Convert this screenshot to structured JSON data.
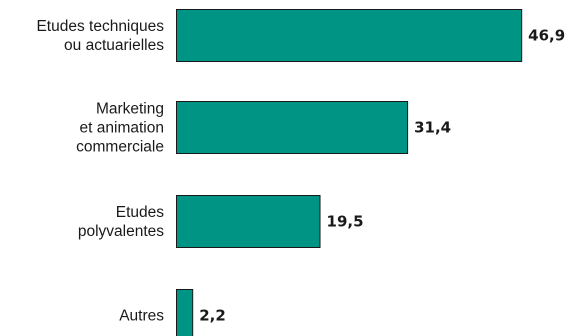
{
  "chart_data": {
    "type": "bar",
    "orientation": "horizontal",
    "categories": [
      [
        "Etudes techniques",
        "ou actuarielles"
      ],
      [
        "Marketing",
        "et animation",
        "commerciale"
      ],
      [
        "Etudes",
        "polyvalentes"
      ],
      [
        "Autres"
      ]
    ],
    "values": [
      46.9,
      31.4,
      19.5,
      2.2
    ],
    "value_labels": [
      "46,9",
      "31,4",
      "19,5",
      "2,2"
    ],
    "xlim": [
      0,
      50
    ],
    "grid": false,
    "bar_color": "#009485",
    "title": "",
    "xlabel": "",
    "ylabel": ""
  }
}
